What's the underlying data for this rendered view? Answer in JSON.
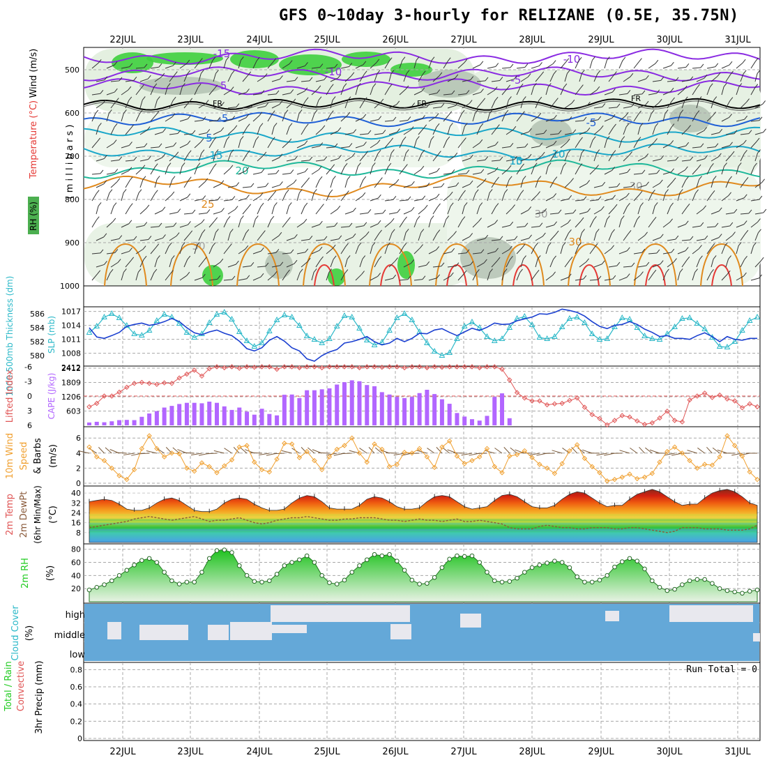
{
  "title": "GFS 0~10day 3-hourly for RELIZANE (0.5E, 35.75N)",
  "colors": {
    "rh_fill": "#4caf50",
    "temp_purple": "#8a2be2",
    "temp_blue": "#1f5fd6",
    "temp_cyan": "#1aa7c9",
    "temp_teal": "#1fb89a",
    "temp_orange": "#e08a1e",
    "temp_red": "#e53935",
    "fr_line": "#000000",
    "thickness": "#2ab8c8",
    "slp": "#1a3fd0",
    "lifted_index": "#e05555",
    "cape": "#b266ff",
    "wind_speed": "#f0a030",
    "wind_barb": "#7a5a3a",
    "rh2m": "#22cc22",
    "cloud": "#64a8d8",
    "cloud_light": "#e8e8ee"
  },
  "x_axis": {
    "dates": [
      "22JUL",
      "23JUL",
      "24JUL",
      "25JUL",
      "26JUL",
      "27JUL",
      "28JUL",
      "29JUL",
      "30JUL",
      "31JUL"
    ]
  },
  "panels": {
    "profile": {
      "ylabels": [
        "RH (%)",
        "Temperature (°C)",
        "Wind (m/s)",
        "( m i l l i b a r s )"
      ],
      "yticks": [
        "500",
        "600",
        "700",
        "800",
        "900",
        "1000"
      ],
      "contour_labels": [
        "-15",
        "-10",
        "-10",
        "-5",
        "-5",
        "-5",
        "-5",
        "FR",
        "FR",
        "FR",
        "-5",
        "5",
        "10",
        "10",
        "15",
        "15",
        "20",
        "25",
        "30",
        "30",
        "30",
        "30"
      ]
    },
    "thickness_slp": {
      "ylabel_left": "1000-500mb Thickness (dm)",
      "ylabel_right": "SLP (mb)",
      "yticks_left": [
        "586",
        "584",
        "582",
        "580"
      ],
      "yticks_right": [
        "1017",
        "1014",
        "1011",
        "1008"
      ]
    },
    "li_cape": {
      "ylabel_left": "Lifted Index",
      "ylabel_right": "CAPE (J/kg)",
      "yticks_left": [
        "-6",
        "-3",
        "0",
        "3",
        "6"
      ],
      "yticks_right": [
        "2412",
        "1809",
        "1206",
        "603"
      ]
    },
    "wind10m": {
      "ylabel": [
        "10m Wind",
        "Speed",
        "& Barbs",
        "(m/s)"
      ],
      "yticks": [
        "6",
        "4",
        "2",
        "0"
      ]
    },
    "temp2m": {
      "ylabel": [
        "2m Temp",
        "2m DewPt",
        "(6hr Min/Max)",
        "(°C)"
      ],
      "yticks": [
        "40",
        "32",
        "24",
        "16",
        "8"
      ]
    },
    "rh2m": {
      "ylabel": [
        "2m RH",
        "(%)"
      ],
      "yticks": [
        "80",
        "60",
        "40",
        "20"
      ]
    },
    "cloud": {
      "ylabel": [
        "Cloud Cover",
        "(%)"
      ],
      "levels": [
        "high",
        "middle",
        "low"
      ]
    },
    "precip": {
      "ylabel": [
        "Total / Rain",
        "Convective",
        "3hr Precip (mm)"
      ],
      "yticks": [
        "0.8",
        "0.6",
        "0.4",
        "0.2",
        "0"
      ],
      "run_total": "Run Total = 0"
    }
  },
  "chart_data": [
    {
      "type": "line",
      "title": "1000-500mb Thickness (dm) / SLP (mb)",
      "series": [
        {
          "name": "Thickness",
          "values": [
            583.3,
            584.2,
            585.5,
            586.0,
            585.4,
            584.3,
            583.1,
            582.9,
            583.6,
            585.0,
            585.9,
            585.5,
            584.6,
            583.3,
            582.6,
            583.1,
            584.7,
            585.9,
            586.2,
            585.2,
            583.4,
            582.1,
            581.3,
            581.8,
            583.5,
            585.1,
            585.8,
            585.5,
            584.3,
            582.8,
            582.3,
            581.8,
            582.4,
            584.2,
            585.7,
            585.5,
            583.9,
            582.2,
            581.5,
            581.9,
            583.6,
            585.4,
            586.0,
            585.1,
            583.4,
            581.8,
            580.6,
            580.0,
            580.4,
            582.4,
            584.2,
            584.8,
            584.0,
            582.7,
            582.1,
            582.4,
            584.0,
            585.3,
            585.6,
            584.4,
            582.6,
            582.4,
            582.7,
            584.1,
            585.3,
            585.5,
            584.7,
            583.1,
            582.3,
            582.4,
            584.1,
            585.4,
            585.2,
            584.0,
            582.8,
            582.4,
            582.3,
            583.1,
            584.1,
            585.3,
            585.4,
            584.6,
            583.8,
            582.6,
            581.3,
            581.2,
            582.0,
            583.6,
            585.0,
            585.5
          ]
        },
        {
          "name": "SLP",
          "values": [
            1013.5,
            1011.5,
            1011.2,
            1011.8,
            1012.5,
            1013.8,
            1014.2,
            1014.5,
            1014.0,
            1014.3,
            1014.8,
            1015.5,
            1014.8,
            1013.5,
            1012.4,
            1012.0,
            1012.6,
            1013.0,
            1012.3,
            1011.8,
            1010.6,
            1009.0,
            1008.5,
            1009.2,
            1010.8,
            1011.6,
            1010.6,
            1009.2,
            1008.5,
            1006.8,
            1006.3,
            1007.5,
            1008.3,
            1008.8,
            1010.2,
            1010.5,
            1011.0,
            1011.6,
            1010.5,
            1009.8,
            1010.2,
            1011.2,
            1010.5,
            1011.2,
            1012.3,
            1012.2,
            1013.0,
            1013.3,
            1012.5,
            1011.8,
            1012.6,
            1013.4,
            1012.9,
            1013.6,
            1014.5,
            1014.2,
            1014.3,
            1015.0,
            1015.4,
            1015.8,
            1016.5,
            1016.4,
            1016.8,
            1017.5,
            1017.2,
            1016.8,
            1016.0,
            1014.8,
            1013.8,
            1013.3,
            1014.0,
            1014.2,
            1014.8,
            1014.2,
            1013.2,
            1012.5,
            1011.6,
            1011.8,
            1011.2,
            1011.2,
            1011.0,
            1011.8,
            1012.4,
            1011.6,
            1010.5,
            1011.6,
            1011.0,
            1010.8,
            1011.2,
            1011.2
          ]
        }
      ],
      "ylim_left": [
        579,
        587
      ],
      "ylim_right": [
        1006,
        1018
      ]
    },
    {
      "type": "bar",
      "title": "Lifted Index / CAPE (J/kg)",
      "series": [
        {
          "name": "CAPE",
          "values": [
            120,
            150,
            130,
            170,
            220,
            230,
            220,
            360,
            500,
            600,
            750,
            820,
            900,
            950,
            950,
            930,
            1000,
            950,
            800,
            650,
            750,
            580,
            450,
            700,
            480,
            420,
            1290,
            1300,
            1150,
            1480,
            1480,
            1520,
            1560,
            1720,
            1820,
            1900,
            1860,
            1700,
            1650,
            1400,
            1300,
            1200,
            1150,
            1200,
            1360,
            1500,
            1320,
            1100,
            910,
            520,
            370,
            260,
            200,
            400,
            1200,
            1350,
            300,
            0,
            0,
            0,
            0,
            0,
            0,
            0,
            0,
            0,
            0,
            0,
            0,
            0,
            0,
            0,
            0,
            0,
            0,
            0,
            0,
            0,
            0,
            0,
            0,
            0,
            0,
            0,
            0,
            0,
            0,
            0,
            0,
            0
          ]
        },
        {
          "name": "Lifted Index",
          "values": [
            2.2,
            1.5,
            0.0,
            0.0,
            -0.8,
            -1.8,
            -2.6,
            -2.8,
            -2.6,
            -2.4,
            -2.7,
            -2.6,
            -3.7,
            -4.5,
            -5.3,
            -4.1,
            -5.6,
            -6.0,
            -5.8,
            -6.0,
            -5.7,
            -6.0,
            -5.9,
            -6.0,
            -6.0,
            -5.5,
            -6.0,
            -6.0,
            -5.8,
            -6.0,
            -6.0,
            -5.8,
            -6.0,
            -6.0,
            -6.0,
            -6.0,
            -5.8,
            -6.0,
            -6.0,
            -5.9,
            -6.0,
            -6.0,
            -5.8,
            -6.0,
            -6.0,
            -5.8,
            -6.0,
            -5.9,
            -6.0,
            -6.0,
            -6.0,
            -6.0,
            -5.8,
            -6.0,
            -6.0,
            -5.5,
            -3.3,
            -0.7,
            0.4,
            1.0,
            1.0,
            1.8,
            1.6,
            1.5,
            0.9,
            0.4,
            2.3,
            3.8,
            4.6,
            5.9,
            5.0,
            4.0,
            4.3,
            5.1,
            5.8,
            5.5,
            4.5,
            3.1,
            5.0,
            5.3,
            0.8,
            0.0,
            -0.6,
            0.3,
            -0.2,
            0.6,
            1.0,
            2.4,
            1.6,
            2.2
          ]
        }
      ],
      "ylim_left": [
        -6,
        6
      ],
      "ylim_right": [
        0,
        2412
      ]
    },
    {
      "type": "line",
      "title": "10m Wind Speed (m/s)",
      "series": [
        {
          "name": "Wind Speed",
          "values": [
            4.8,
            3.5,
            3.0,
            2.0,
            1.0,
            0.5,
            1.8,
            4.6,
            6.3,
            4.6,
            3.5,
            4.0,
            3.9,
            2.0,
            1.6,
            2.7,
            2.2,
            1.4,
            2.3,
            3.1,
            4.8,
            5.0,
            2.8,
            1.8,
            1.5,
            3.2,
            5.3,
            5.2,
            3.4,
            4.2,
            3.0,
            1.8,
            3.5,
            4.5,
            5.0,
            6.0,
            4.0,
            2.8,
            5.2,
            4.5,
            2.2,
            2.5,
            4.1,
            4.0,
            4.6,
            3.5,
            2.1,
            4.8,
            5.6,
            3.6,
            2.6,
            3.0,
            3.5,
            4.6,
            2.2,
            1.4,
            3.6,
            3.8,
            4.3,
            3.4,
            2.5,
            2.0,
            1.3,
            2.6,
            4.3,
            5.1,
            3.3,
            2.2,
            1.4,
            0.3,
            0.5,
            0.8,
            1.2,
            0.6,
            0.8,
            1.3,
            2.8,
            4.2,
            4.8,
            4.0,
            3.0,
            2.0,
            2.5,
            2.4,
            3.5,
            6.3,
            5.0,
            3.6,
            1.5,
            0.5
          ]
        }
      ],
      "ylim": [
        0,
        7
      ]
    },
    {
      "type": "area",
      "title": "2m Temp / 2m DewPt (°C)",
      "series": [
        {
          "name": "2m Temp",
          "values": [
            33,
            34,
            35,
            34,
            31,
            27,
            26,
            26,
            28,
            32,
            35,
            36,
            34,
            30,
            26,
            25,
            25,
            27,
            32,
            35,
            36,
            35,
            31,
            28,
            26,
            26,
            27,
            32,
            36,
            38,
            37,
            33,
            28,
            27,
            27,
            27,
            30,
            35,
            37,
            36,
            33,
            29,
            27,
            27,
            28,
            33,
            37,
            38,
            37,
            33,
            29,
            27,
            28,
            29,
            34,
            38,
            39,
            37,
            33,
            29,
            28,
            28,
            30,
            35,
            39,
            41,
            40,
            36,
            32,
            29,
            30,
            30,
            35,
            39,
            41,
            43,
            41,
            37,
            33,
            30,
            31,
            31,
            36,
            40,
            42,
            43,
            41,
            37,
            32,
            30
          ]
        },
        {
          "name": "2m DewPt",
          "values": [
            12,
            13,
            14,
            15,
            16,
            17,
            19,
            20,
            21,
            20,
            19,
            18,
            19,
            20,
            21,
            19,
            17,
            18,
            18,
            19,
            20,
            18,
            16,
            15,
            16,
            18,
            19,
            20,
            20,
            21,
            20,
            19,
            18,
            18,
            19,
            19,
            20,
            20,
            20,
            19,
            18,
            18,
            17,
            18,
            19,
            18,
            18,
            17,
            18,
            19,
            17,
            17,
            18,
            17,
            16,
            15,
            12,
            11,
            11,
            11,
            13,
            14,
            13,
            12,
            12,
            11,
            11,
            12,
            12,
            12,
            11,
            11,
            12,
            12,
            11,
            10,
            9,
            8,
            9,
            12,
            12,
            12,
            11,
            11,
            11,
            10,
            10,
            10,
            11,
            14
          ]
        }
      ],
      "ylim": [
        0,
        44
      ]
    },
    {
      "type": "area",
      "title": "2m RH (%)",
      "series": [
        {
          "name": "2m RH",
          "values": [
            18,
            22,
            26,
            32,
            40,
            48,
            56,
            63,
            66,
            60,
            45,
            32,
            27,
            30,
            30,
            45,
            66,
            78,
            79,
            75,
            55,
            40,
            31,
            30,
            32,
            42,
            55,
            60,
            64,
            70,
            60,
            40,
            29,
            27,
            33,
            45,
            55,
            64,
            72,
            70,
            72,
            62,
            48,
            33,
            27,
            28,
            37,
            52,
            65,
            70,
            69,
            70,
            60,
            45,
            32,
            30,
            31,
            36,
            45,
            52,
            56,
            59,
            62,
            60,
            52,
            38,
            30,
            30,
            33,
            40,
            53,
            61,
            66,
            62,
            50,
            32,
            22,
            17,
            19,
            26,
            32,
            34,
            34,
            28,
            20,
            17,
            15,
            13,
            16,
            18
          ]
        }
      ],
      "ylim": [
        0,
        85
      ]
    },
    {
      "type": "bar",
      "title": "3hr Precip (mm)",
      "series": [
        {
          "name": "Total / Rain",
          "values": [
            0,
            0,
            0,
            0,
            0,
            0,
            0,
            0,
            0,
            0,
            0,
            0,
            0,
            0,
            0,
            0,
            0,
            0,
            0,
            0,
            0,
            0,
            0,
            0,
            0,
            0,
            0,
            0,
            0,
            0,
            0,
            0,
            0,
            0,
            0,
            0,
            0,
            0,
            0,
            0,
            0,
            0,
            0,
            0,
            0,
            0,
            0,
            0,
            0,
            0,
            0,
            0,
            0,
            0,
            0,
            0,
            0,
            0,
            0,
            0,
            0,
            0,
            0,
            0,
            0,
            0,
            0,
            0,
            0,
            0,
            0,
            0,
            0,
            0,
            0,
            0,
            0,
            0,
            0,
            0,
            0,
            0,
            0,
            0,
            0,
            0,
            0,
            0,
            0,
            0
          ]
        }
      ],
      "ylim": [
        0,
        0.9
      ]
    }
  ]
}
